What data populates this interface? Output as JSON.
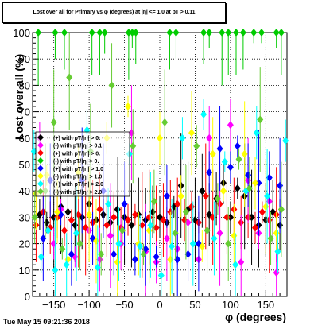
{
  "chart_data": {
    "type": "scatter",
    "title": "Lost over all for Primary vs φ (degrees) at |η| <= 1.0 at pT > 0.11",
    "xlabel": "φ (degrees)",
    "ylabel": "Lost over all (%)",
    "xlim": [
      -180,
      180
    ],
    "ylim": [
      0,
      100
    ],
    "x_ticks": [
      -150,
      -100,
      -50,
      0,
      50,
      100,
      150
    ],
    "y_ticks": [
      0,
      10,
      20,
      30,
      40,
      50,
      60,
      70,
      80,
      90,
      100
    ],
    "x_tick_labels": [
      "−150",
      "−100",
      "−50",
      "0",
      "50",
      "100",
      "150"
    ],
    "y_tick_labels": [
      "0",
      "10",
      "20",
      "30",
      "40",
      "50",
      "60",
      "70",
      "80",
      "90",
      "100"
    ],
    "grid": true,
    "legend_position": "upper-left",
    "legend_entries": [
      {
        "label": "(+) with pT/|η| > 0.",
        "color": "#000000"
      },
      {
        "label": "(-) with pT/|η| > 0.1",
        "color": "#ff00ff"
      },
      {
        "label": "(+) with pT/|η| > 0.",
        "color": "#ff0000"
      },
      {
        "label": "(-) with pT/|η| > 0.",
        "color": "#00cc00"
      },
      {
        "label": "(+) with pT/|η| > 1.0",
        "color": "#0000ff"
      },
      {
        "label": "(-) with pT/|η| > 1.0",
        "color": "#ffff00"
      },
      {
        "label": "(+) with pT/|η| > 2.0",
        "color": "#00ffff"
      },
      {
        "label": "(-) with pT/|η| > 2.0",
        "color": "#66cc33"
      }
    ],
    "series": [
      {
        "color": "#000000",
        "points": [
          [
            -170,
            31
          ],
          [
            -160,
            28
          ],
          [
            -150,
            30
          ],
          [
            -140,
            34
          ],
          [
            -130,
            32
          ],
          [
            -120,
            27
          ],
          [
            -110,
            30
          ],
          [
            -100,
            35
          ],
          [
            -90,
            29
          ],
          [
            -80,
            31
          ],
          [
            -70,
            28
          ],
          [
            -60,
            33
          ],
          [
            -50,
            30
          ],
          [
            -40,
            27
          ],
          [
            -30,
            31
          ],
          [
            -20,
            29
          ],
          [
            -10,
            32
          ],
          [
            0,
            30
          ],
          [
            10,
            28
          ],
          [
            20,
            34
          ],
          [
            30,
            42
          ],
          [
            40,
            33
          ],
          [
            50,
            29
          ],
          [
            60,
            40
          ],
          [
            70,
            31
          ],
          [
            80,
            37
          ],
          [
            90,
            43
          ],
          [
            100,
            30
          ],
          [
            110,
            41
          ],
          [
            120,
            38
          ],
          [
            130,
            30
          ],
          [
            140,
            27
          ],
          [
            150,
            29
          ],
          [
            160,
            32
          ],
          [
            170,
            27
          ]
        ]
      },
      {
        "color": "#ff0000",
        "points": [
          [
            -175,
            27
          ],
          [
            -165,
            32
          ],
          [
            -155,
            26
          ],
          [
            -145,
            30
          ],
          [
            -135,
            25
          ],
          [
            -125,
            29
          ],
          [
            -115,
            31
          ],
          [
            -105,
            26
          ],
          [
            -95,
            28
          ],
          [
            -85,
            33
          ],
          [
            -75,
            27
          ],
          [
            -65,
            30
          ],
          [
            -55,
            26
          ],
          [
            -45,
            29
          ],
          [
            -35,
            31
          ],
          [
            -25,
            27
          ],
          [
            -15,
            30
          ],
          [
            -5,
            26
          ],
          [
            5,
            29
          ],
          [
            15,
            32
          ],
          [
            25,
            35
          ],
          [
            35,
            29
          ],
          [
            45,
            34
          ],
          [
            55,
            28
          ],
          [
            65,
            38
          ],
          [
            75,
            30
          ],
          [
            85,
            35
          ],
          [
            95,
            30
          ],
          [
            105,
            33
          ],
          [
            115,
            28
          ],
          [
            125,
            30
          ],
          [
            135,
            26
          ],
          [
            145,
            32
          ],
          [
            155,
            29
          ],
          [
            165,
            31
          ]
        ]
      },
      {
        "color": "#ff00ff",
        "points": [
          [
            -170,
            60
          ],
          [
            -150,
            20
          ],
          [
            -140,
            33
          ],
          [
            -120,
            15
          ],
          [
            -100,
            25
          ],
          [
            -85,
            14
          ],
          [
            -70,
            23
          ],
          [
            -55,
            20
          ],
          [
            -40,
            62
          ],
          [
            -20,
            17
          ],
          [
            -5,
            13
          ],
          [
            10,
            22
          ],
          [
            25,
            18
          ],
          [
            40,
            28
          ],
          [
            55,
            14
          ],
          [
            70,
            60
          ],
          [
            85,
            24
          ],
          [
            100,
            65
          ],
          [
            115,
            13
          ],
          [
            125,
            44
          ],
          [
            140,
            24
          ],
          [
            155,
            36
          ],
          [
            165,
            9
          ]
        ]
      },
      {
        "color": "#0000ff",
        "points": [
          [
            -165,
            22
          ],
          [
            -155,
            44
          ],
          [
            -140,
            31
          ],
          [
            -125,
            16
          ],
          [
            -110,
            44
          ],
          [
            -95,
            22
          ],
          [
            -80,
            40
          ],
          [
            -65,
            16
          ],
          [
            -50,
            35
          ],
          [
            -35,
            14
          ],
          [
            -20,
            18
          ],
          [
            -5,
            15
          ],
          [
            10,
            38
          ],
          [
            25,
            14
          ],
          [
            40,
            16
          ],
          [
            55,
            20
          ],
          [
            70,
            47
          ],
          [
            85,
            56
          ],
          [
            100,
            49
          ],
          [
            110,
            57
          ],
          [
            125,
            46
          ],
          [
            140,
            43
          ],
          [
            155,
            45
          ],
          [
            170,
            42
          ]
        ]
      },
      {
        "color": "#ffff00",
        "points": [
          [
            -175,
            39
          ],
          [
            -160,
            46
          ],
          [
            -145,
            32
          ],
          [
            -130,
            14
          ],
          [
            -115,
            47
          ],
          [
            -100,
            31
          ],
          [
            -90,
            21
          ],
          [
            -75,
            60
          ],
          [
            -60,
            13
          ],
          [
            -45,
            72
          ],
          [
            -30,
            20
          ],
          [
            -15,
            25
          ],
          [
            0,
            60
          ],
          [
            15,
            14
          ],
          [
            30,
            38
          ],
          [
            45,
            62
          ],
          [
            60,
            19
          ],
          [
            75,
            54
          ],
          [
            90,
            40
          ],
          [
            105,
            23
          ],
          [
            120,
            54
          ],
          [
            135,
            43
          ],
          [
            150,
            34
          ],
          [
            165,
            24
          ]
        ]
      },
      {
        "color": "#00ffff",
        "points": [
          [
            -178,
            55
          ],
          [
            -168,
            15
          ],
          [
            -158,
            25
          ],
          [
            -148,
            10
          ],
          [
            -132,
            12
          ],
          [
            -118,
            24
          ],
          [
            -103,
            63
          ],
          [
            -88,
            11
          ],
          [
            -73,
            35
          ],
          [
            -58,
            20
          ],
          [
            -43,
            54
          ],
          [
            -28,
            19
          ],
          [
            -13,
            27
          ],
          [
            2,
            8
          ],
          [
            17,
            19
          ],
          [
            32,
            60
          ],
          [
            47,
            20
          ],
          [
            62,
            69
          ],
          [
            77,
            22
          ],
          [
            92,
            51
          ],
          [
            107,
            12
          ],
          [
            122,
            40
          ],
          [
            137,
            62
          ],
          [
            152,
            38
          ],
          [
            167,
            17
          ],
          [
            178,
            59
          ]
        ]
      },
      {
        "color": "#00cc00",
        "points": [
          [
            -172,
            100
          ],
          [
            -148,
            100
          ],
          [
            -135,
            100
          ],
          [
            -96,
            100
          ],
          [
            -85,
            100
          ],
          [
            -78,
            100
          ],
          [
            -44,
            100
          ],
          [
            -39,
            100
          ],
          [
            -34,
            100
          ],
          [
            14,
            100
          ],
          [
            23,
            100
          ],
          [
            62,
            100
          ],
          [
            70,
            100
          ],
          [
            88,
            100
          ],
          [
            97,
            100
          ],
          [
            108,
            100
          ],
          [
            118,
            100
          ],
          [
            133,
            100
          ],
          [
            144,
            100
          ],
          [
            165,
            100
          ],
          [
            172,
            100
          ]
        ]
      },
      {
        "color": "#66cc33",
        "points": [
          [
            -177,
            30
          ],
          [
            -162,
            40
          ],
          [
            -150,
            66
          ],
          [
            -138,
            18
          ],
          [
            -128,
            83
          ],
          [
            -113,
            20
          ],
          [
            -98,
            55
          ],
          [
            -83,
            16
          ],
          [
            -68,
            80
          ],
          [
            -53,
            25
          ],
          [
            -38,
            57
          ],
          [
            -23,
            16
          ],
          [
            -8,
            36
          ],
          [
            7,
            66
          ],
          [
            22,
            24
          ],
          [
            37,
            32
          ],
          [
            52,
            57
          ],
          [
            67,
            25
          ],
          [
            82,
            37
          ],
          [
            97,
            20
          ],
          [
            112,
            52
          ],
          [
            127,
            41
          ],
          [
            142,
            67
          ],
          [
            157,
            22
          ],
          [
            172,
            33
          ]
        ]
      }
    ]
  },
  "timestamp": "Tue May 15 09:21:36 2018"
}
